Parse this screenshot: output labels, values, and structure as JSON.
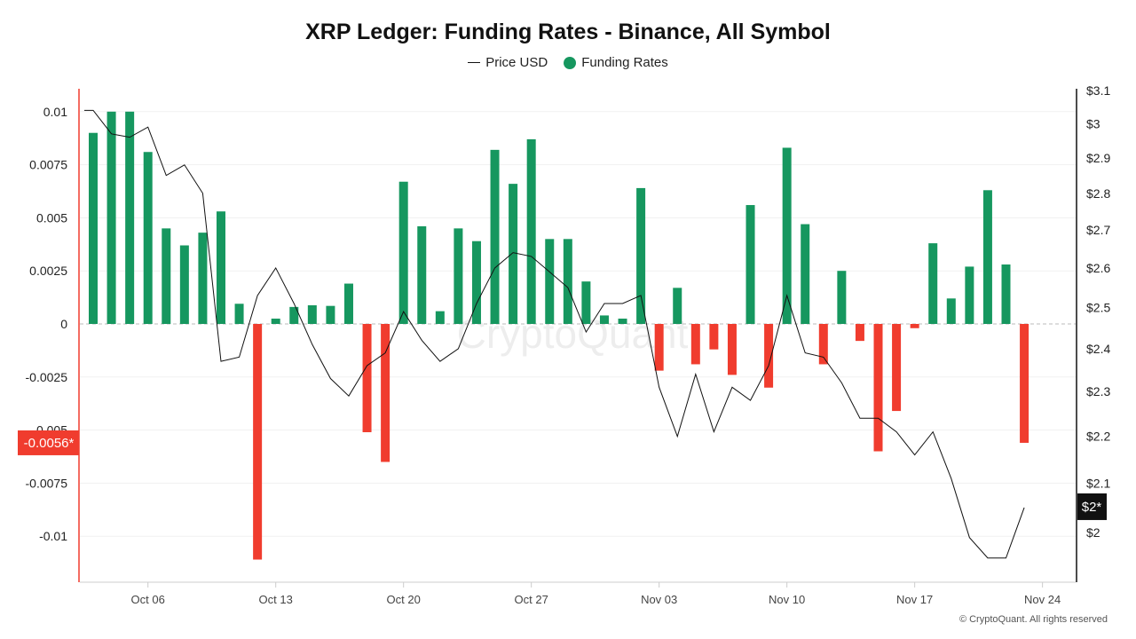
{
  "chart_data": {
    "type": "bar+line",
    "title": "XRP Ledger: Funding Rates - Binance, All Symbol",
    "legend": {
      "placement": "top-center",
      "entries": [
        "Price USD",
        "Funding Rates"
      ]
    },
    "dates": [
      "Oct 03",
      "Oct 04",
      "Oct 05",
      "Oct 06",
      "Oct 07",
      "Oct 08",
      "Oct 09",
      "Oct 10",
      "Oct 11",
      "Oct 12",
      "Oct 13",
      "Oct 14",
      "Oct 15",
      "Oct 16",
      "Oct 17",
      "Oct 18",
      "Oct 19",
      "Oct 20",
      "Oct 21",
      "Oct 22",
      "Oct 23",
      "Oct 24",
      "Oct 25",
      "Oct 26",
      "Oct 27",
      "Oct 28",
      "Oct 29",
      "Oct 30",
      "Oct 31",
      "Nov 01",
      "Nov 02",
      "Nov 03",
      "Nov 04",
      "Nov 05",
      "Nov 06",
      "Nov 07",
      "Nov 08",
      "Nov 09",
      "Nov 10",
      "Nov 11",
      "Nov 12",
      "Nov 13",
      "Nov 14",
      "Nov 15",
      "Nov 16",
      "Nov 17",
      "Nov 18",
      "Nov 19",
      "Nov 20",
      "Nov 21",
      "Nov 22",
      "Nov 23"
    ],
    "series": [
      {
        "name": "Funding Rates",
        "type": "bar",
        "axis": "left",
        "values": [
          0.009,
          0.01,
          0.01,
          0.0081,
          0.0045,
          0.0037,
          0.0043,
          0.0053,
          0.00095,
          -0.0111,
          0.00025,
          0.0008,
          0.00088,
          0.00085,
          0.0019,
          -0.0051,
          -0.0065,
          0.0067,
          0.0046,
          0.0006,
          0.0045,
          0.0039,
          0.0082,
          0.0066,
          0.0087,
          0.004,
          0.004,
          0.002,
          0.0004,
          0.00025,
          0.0064,
          -0.0022,
          0.0017,
          -0.0019,
          -0.0012,
          -0.0024,
          0.0056,
          -0.003,
          0.0083,
          0.0047,
          -0.0019,
          0.0025,
          -0.0008,
          -0.006,
          -0.0041,
          -0.0002,
          0.0038,
          0.0012,
          0.0027,
          0.0063,
          0.0028,
          -0.0056
        ]
      },
      {
        "name": "Price USD",
        "type": "line",
        "axis": "right",
        "values": [
          3.04,
          2.97,
          2.96,
          2.99,
          2.85,
          2.88,
          2.8,
          2.37,
          2.38,
          2.53,
          2.6,
          2.51,
          2.41,
          2.33,
          2.29,
          2.36,
          2.39,
          2.49,
          2.42,
          2.37,
          2.4,
          2.51,
          2.6,
          2.64,
          2.63,
          2.59,
          2.55,
          2.44,
          2.51,
          2.51,
          2.53,
          2.31,
          2.2,
          2.34,
          2.21,
          2.31,
          2.28,
          2.36,
          2.53,
          2.39,
          2.38,
          2.32,
          2.24,
          2.24,
          2.21,
          2.16,
          2.21,
          2.11,
          1.99,
          1.95,
          1.95,
          2.05
        ]
      }
    ],
    "x_ticks": [
      "Oct 06",
      "Oct 13",
      "Oct 20",
      "Oct 27",
      "Nov 03",
      "Nov 10",
      "Nov 17",
      "Nov 24"
    ],
    "y_left": {
      "ticks": [
        "0.01",
        "0.0075",
        "0.005",
        "0.0025",
        "0",
        "-0.0025",
        "-0.005",
        "-0.0075",
        "-0.01"
      ],
      "range": [
        -0.0122,
        0.0111
      ]
    },
    "y_right": {
      "scale": "log",
      "ticks": [
        "$3.1",
        "$3",
        "$2.9",
        "$2.8",
        "$2.7",
        "$2.6",
        "$2.5",
        "$2.4",
        "$2.3",
        "$2.2",
        "$2.1",
        "$2"
      ],
      "range": [
        1.89,
        3.1
      ]
    },
    "current_labels": {
      "funding": "-0.0056*",
      "price": "$2*"
    },
    "grid": true,
    "colors": {
      "positive": "#16975f",
      "negative": "#f03c2e",
      "price_line": "#111111",
      "left_axis": "#f03c2e",
      "right_axis": "#111111"
    }
  },
  "watermark": "CryptoQuant",
  "copyright": "© CryptoQuant. All rights reserved"
}
